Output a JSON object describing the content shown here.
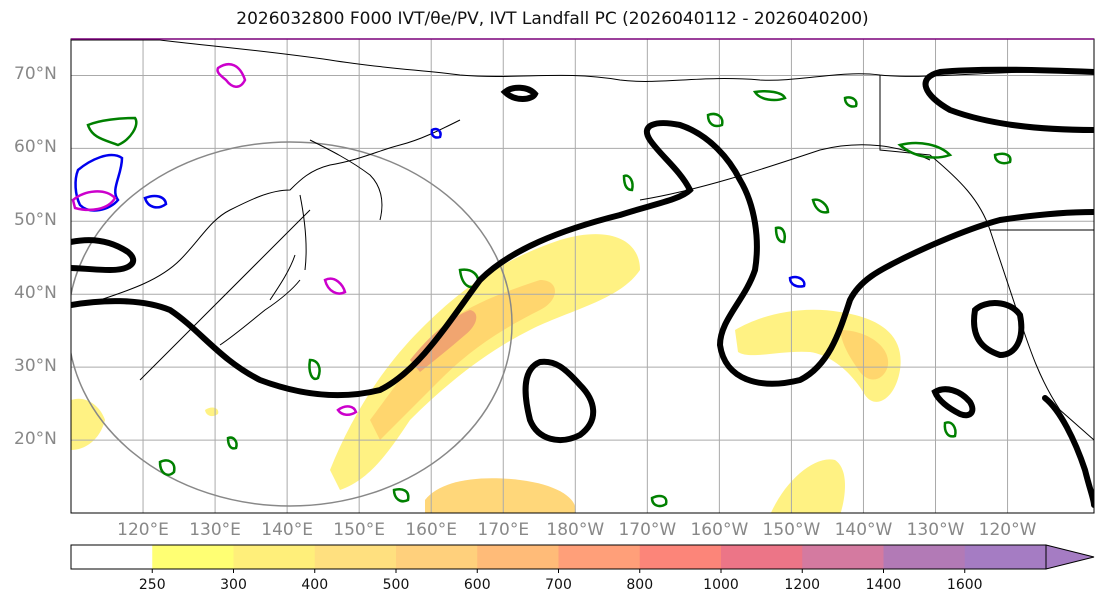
{
  "title": "2026032800 F000 IVT/θe/PV, IVT Landfall PC (2026040112 - 2026040200)",
  "map": {
    "lat_labels": [
      "70°N",
      "60°N",
      "50°N",
      "40°N",
      "30°N",
      "20°N"
    ],
    "lat_values": [
      70,
      60,
      50,
      40,
      30,
      20
    ],
    "lon_labels": [
      "120°E",
      "130°E",
      "140°E",
      "150°E",
      "160°E",
      "170°E",
      "180°W",
      "170°W",
      "160°W",
      "150°W",
      "140°W",
      "130°W",
      "120°W"
    ],
    "lon_values": [
      120,
      130,
      140,
      150,
      160,
      170,
      180,
      190,
      200,
      210,
      220,
      230,
      240
    ],
    "lat_range": [
      10,
      75
    ],
    "lon_range": [
      110,
      252
    ],
    "colors": {
      "ivt_low": "#fff176",
      "ivt_mid": "#ffd36b",
      "ivt_high": "#f0a070",
      "theta_e": "#000000",
      "pv_green": "#008000",
      "pv_blue": "#0000ee",
      "pv_magenta": "#cc00cc",
      "circle": "#888888",
      "grid": "#aaaaaa",
      "coast": "#000000"
    }
  },
  "colorbar": {
    "ticks": [
      "250",
      "300",
      "400",
      "500",
      "600",
      "700",
      "800",
      "1000",
      "1200",
      "1400",
      "1600"
    ],
    "colors": [
      "#ffffff",
      "#ffff73",
      "#ffef7a",
      "#ffe07f",
      "#ffd07c",
      "#ffbb78",
      "#ff9f79",
      "#fc8579",
      "#ec7587",
      "#d47aa0",
      "#b27ab6",
      "#a57cc3"
    ]
  }
}
